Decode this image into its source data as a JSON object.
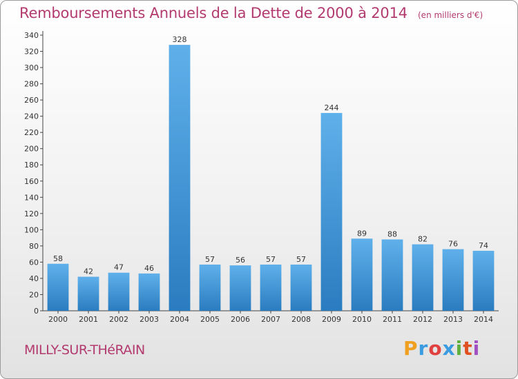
{
  "title": "Remboursements Annuels de la Dette de 2000 à 2014",
  "unit": "(en milliers d'€)",
  "commune": "MILLY-SUR-THéRAIN",
  "brand": {
    "letters": [
      "P",
      "r",
      "o",
      "x",
      "i",
      "t",
      "i"
    ],
    "colors": [
      "#f0a020",
      "#3a9be0",
      "#e04040",
      "#3a9be0",
      "#60b040",
      "#e05020",
      "#a050c0"
    ]
  },
  "colors": {
    "bar_light": "#5fb0ea",
    "bar_dark": "#2a7cc0",
    "accent": "#b23a6e"
  },
  "chart_data": {
    "type": "bar",
    "categories": [
      "2000",
      "2001",
      "2002",
      "2003",
      "2004",
      "2005",
      "2006",
      "2007",
      "2008",
      "2009",
      "2010",
      "2011",
      "2012",
      "2013",
      "2014"
    ],
    "values": [
      58,
      42,
      47,
      46,
      328,
      57,
      56,
      57,
      57,
      244,
      89,
      88,
      82,
      76,
      74
    ],
    "title": "Remboursements Annuels de la Dette de 2000 à 2014",
    "ylim": [
      0,
      340
    ],
    "yticks": [
      0,
      20,
      40,
      60,
      80,
      100,
      120,
      140,
      160,
      180,
      200,
      220,
      240,
      260,
      280,
      300,
      320,
      340
    ],
    "grid": false,
    "data_labels": true
  }
}
